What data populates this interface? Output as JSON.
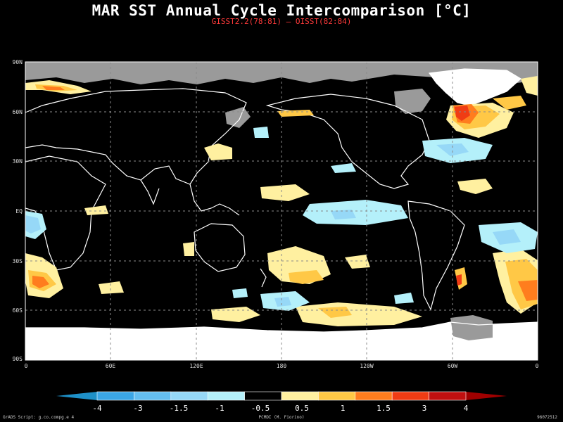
{
  "title": "MAR SST Annual Cycle Intercomparison [°C]",
  "subtitle": "GISST2.2(78:81) – OISST(82:84)",
  "lat_labels": [
    "90N",
    "60N",
    "30N",
    "EQ",
    "30S",
    "60S",
    "90S"
  ],
  "lon_labels": [
    "0",
    "60E",
    "120E",
    "180",
    "120W",
    "60W",
    "0"
  ],
  "colorbar": {
    "tick_labels": [
      "-4",
      "-3",
      "-1.5",
      "-1",
      "-0.5",
      "0.5",
      "1",
      "1.5",
      "3",
      "4"
    ],
    "colors": [
      "#1e90c8",
      "#3ba6e6",
      "#64bef0",
      "#96d8f7",
      "#b4f0fa",
      "#000000",
      "#fff0a0",
      "#ffc846",
      "#ff7d1e",
      "#f03c14",
      "#c01010",
      "#a00000"
    ]
  },
  "map_colors": {
    "ocean": "#000000",
    "land_ice": "#ffffff",
    "sea_ice": "#9a9a9a",
    "coast": "#ffffff",
    "grid": "#8a8a8a"
  },
  "footer": {
    "left": "GrADS Script: g.co.compg.e 4",
    "center": "PCMDI (M. Fiorino)",
    "right": "96072512"
  }
}
